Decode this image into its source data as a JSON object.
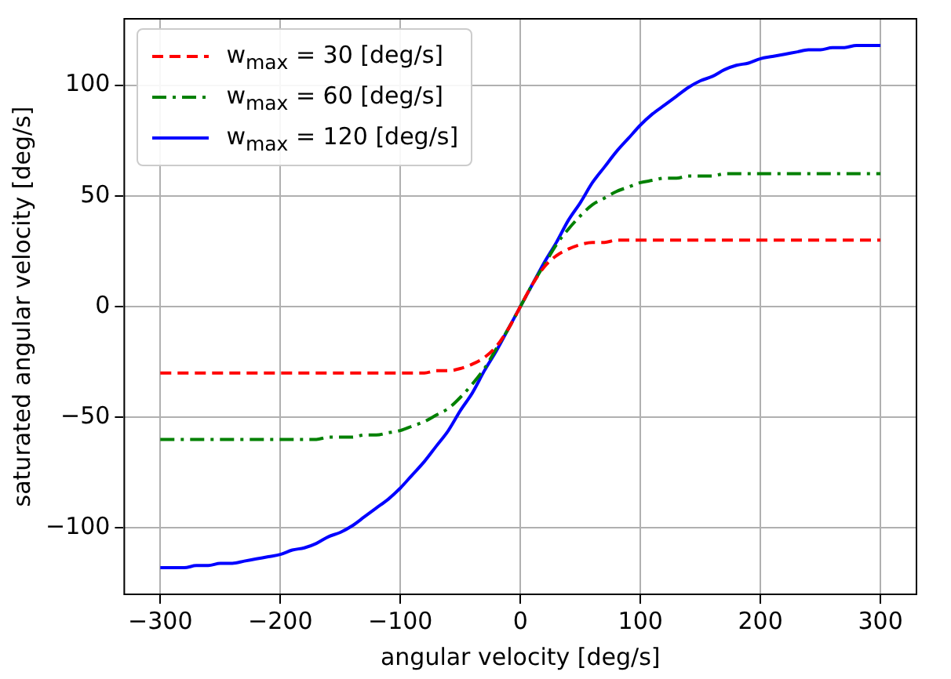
{
  "chart_data": {
    "type": "line",
    "xlabel": "angular velocity [deg/s]",
    "ylabel": "saturated angular velocity [deg/s]",
    "x": [
      -300,
      -290,
      -280,
      -270,
      -260,
      -250,
      -240,
      -230,
      -220,
      -210,
      -200,
      -190,
      -180,
      -170,
      -160,
      -150,
      -140,
      -130,
      -120,
      -110,
      -100,
      -90,
      -80,
      -70,
      -60,
      -50,
      -40,
      -30,
      -20,
      -10,
      0,
      10,
      20,
      30,
      40,
      50,
      60,
      70,
      80,
      90,
      100,
      110,
      120,
      130,
      140,
      150,
      160,
      170,
      180,
      190,
      200,
      210,
      220,
      230,
      240,
      250,
      260,
      270,
      280,
      290,
      300
    ],
    "series": [
      {
        "name": "w$_{max}$ = 30 [deg/s]",
        "color": "#ff0000",
        "line_style": "dashed",
        "values": [
          -30,
          -30,
          -30,
          -30,
          -30,
          -30,
          -30,
          -30,
          -30,
          -30,
          -30,
          -30,
          -30,
          -30,
          -30,
          -30,
          -30,
          -30,
          -30,
          -30,
          -30,
          -30,
          -30,
          -29,
          -29,
          -28,
          -26,
          -23,
          -18,
          -10,
          0,
          10,
          18,
          23,
          26,
          28,
          29,
          29,
          30,
          30,
          30,
          30,
          30,
          30,
          30,
          30,
          30,
          30,
          30,
          30,
          30,
          30,
          30,
          30,
          30,
          30,
          30,
          30,
          30,
          30,
          30
        ]
      },
      {
        "name": "w$_{max}$ = 60 [deg/s]",
        "color": "#008000",
        "line_style": "dashdot",
        "values": [
          -60,
          -60,
          -60,
          -60,
          -60,
          -60,
          -60,
          -60,
          -60,
          -60,
          -60,
          -60,
          -60,
          -60,
          -59,
          -59,
          -59,
          -58,
          -58,
          -57,
          -56,
          -54,
          -52,
          -49,
          -46,
          -41,
          -35,
          -28,
          -19,
          -10,
          0,
          10,
          19,
          28,
          35,
          41,
          46,
          49,
          52,
          54,
          56,
          57,
          58,
          58,
          59,
          59,
          59,
          60,
          60,
          60,
          60,
          60,
          60,
          60,
          60,
          60,
          60,
          60,
          60,
          60,
          60
        ]
      },
      {
        "name": "w$_{max}$ = 120 [deg/s]",
        "color": "#0000ff",
        "line_style": "solid",
        "values": [
          -118,
          -118,
          -118,
          -117,
          -117,
          -116,
          -116,
          -115,
          -114,
          -113,
          -112,
          -110,
          -109,
          -107,
          -104,
          -102,
          -99,
          -95,
          -91,
          -87,
          -82,
          -76,
          -70,
          -63,
          -56,
          -47,
          -39,
          -29,
          -20,
          -10,
          0,
          10,
          20,
          29,
          39,
          47,
          56,
          63,
          70,
          76,
          82,
          87,
          91,
          95,
          99,
          102,
          104,
          107,
          109,
          110,
          112,
          113,
          114,
          115,
          116,
          116,
          117,
          117,
          118,
          118,
          118
        ]
      }
    ],
    "xlim": [
      -330,
      330
    ],
    "xticks": [
      {
        "value": -300,
        "label": "−300"
      },
      {
        "value": -200,
        "label": "−200"
      },
      {
        "value": -100,
        "label": "−100"
      },
      0,
      100,
      200,
      300
    ],
    "ylim": [
      -130,
      130
    ],
    "yticks": [
      {
        "value": -100,
        "label": "−100"
      },
      {
        "value": -50,
        "label": "−50"
      },
      0,
      50,
      100
    ],
    "grid": true,
    "legend": "top left",
    "marker": "none"
  }
}
